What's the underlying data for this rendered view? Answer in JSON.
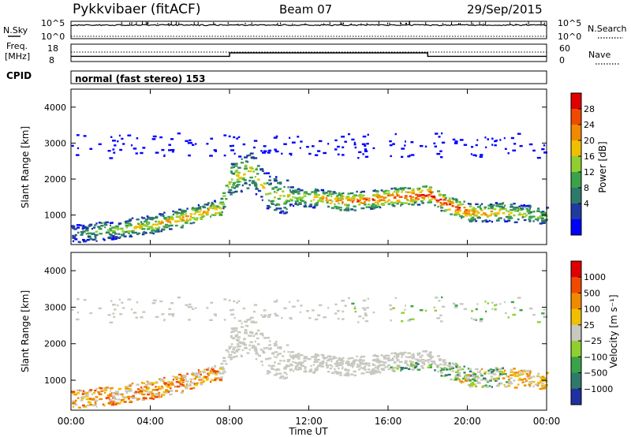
{
  "header": {
    "station": "Pykkvibaer (fitACF)",
    "beam": "Beam 07",
    "date": "29/Sep/2015"
  },
  "noise_panel": {
    "left_label": "N.Sky",
    "right_label": "N.Search",
    "left_ticks": [
      "10^5",
      "10^0"
    ],
    "right_ticks": [
      "10^5",
      "10^0"
    ]
  },
  "freq_panel": {
    "left_label_1": "Freq.",
    "left_label_2": "[MHz]",
    "right_label": "Nave",
    "left_ticks": [
      "18",
      "8"
    ],
    "right_ticks": [
      "60",
      "0"
    ]
  },
  "cpid": {
    "label": "CPID",
    "mode_text": "normal (fast stereo) 153"
  },
  "power_panel": {
    "ylabel": "Slant Range [km]",
    "yticks": [
      "4000",
      "3000",
      "2000",
      "1000"
    ],
    "colorbar_label": "Power [dB]",
    "colorbar_ticks": [
      "28",
      "24",
      "20",
      "16",
      "12",
      "8",
      "4"
    ],
    "colors": [
      "#0000ff",
      "#1f3aa0",
      "#2e7a6a",
      "#3aa24a",
      "#8fd030",
      "#f0c000",
      "#f08a00",
      "#f04a00",
      "#e00000"
    ]
  },
  "velocity_panel": {
    "ylabel": "Slant Range [km]",
    "yticks": [
      "4000",
      "3000",
      "2000",
      "1000"
    ],
    "colorbar_label": "Velocity [m s⁻¹]",
    "colorbar_ticks": [
      "1000",
      "500",
      "100",
      "25",
      "−25",
      "−100",
      "−500",
      "−1000"
    ],
    "colors": [
      "#2030a0",
      "#2e7a6a",
      "#3aa24a",
      "#8fd030",
      "#c8c8c0",
      "#f0c000",
      "#f08a00",
      "#f04a00",
      "#e00000"
    ]
  },
  "xaxis": {
    "label": "Time UT",
    "ticks": [
      "00:00",
      "04:00",
      "08:00",
      "12:00",
      "16:00",
      "20:00",
      "00:00"
    ]
  },
  "chart_data": {
    "type": "heatmap",
    "x_range": [
      "00:00",
      "24:00"
    ],
    "y_range_km": [
      180,
      4500
    ],
    "power_db_range": [
      0,
      30
    ],
    "velocity_range": [
      -1000,
      1000
    ],
    "echo_band": [
      {
        "t": 0.0,
        "range_km": 500,
        "power": 8
      },
      {
        "t": 2.0,
        "range_km": 600,
        "power": 14
      },
      {
        "t": 4.0,
        "range_km": 750,
        "power": 18
      },
      {
        "t": 6.0,
        "range_km": 1000,
        "power": 22
      },
      {
        "t": 7.5,
        "range_km": 1200,
        "power": 20
      },
      {
        "t": 8.0,
        "range_km": 2000,
        "power": 16
      },
      {
        "t": 9.0,
        "range_km": 2300,
        "power": 18
      },
      {
        "t": 10.0,
        "range_km": 1600,
        "power": 16
      },
      {
        "t": 12.0,
        "range_km": 1500,
        "power": 18
      },
      {
        "t": 14.0,
        "range_km": 1400,
        "power": 24
      },
      {
        "t": 16.0,
        "range_km": 1500,
        "power": 26
      },
      {
        "t": 18.0,
        "range_km": 1600,
        "power": 28
      },
      {
        "t": 19.0,
        "range_km": 1300,
        "power": 28
      },
      {
        "t": 20.0,
        "range_km": 1100,
        "power": 24
      },
      {
        "t": 22.0,
        "range_km": 1100,
        "power": 18
      },
      {
        "t": 24.0,
        "range_km": 1000,
        "power": 12
      }
    ],
    "frequency_mhz": [
      {
        "t": 0,
        "f": 11
      },
      {
        "t": 8,
        "f": 11
      },
      {
        "t": 8,
        "f": 13
      },
      {
        "t": 18,
        "f": 13
      },
      {
        "t": 18,
        "f": 11
      },
      {
        "t": 24,
        "f": 11
      }
    ]
  }
}
